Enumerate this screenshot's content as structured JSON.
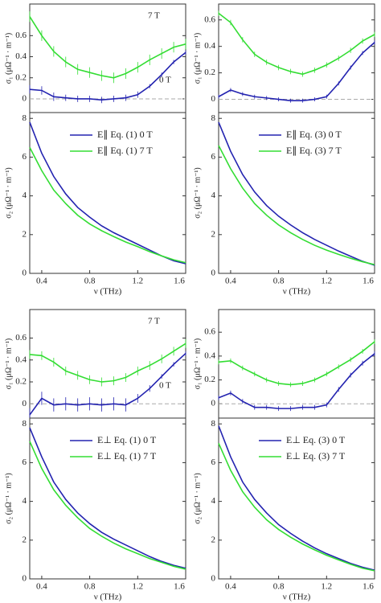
{
  "chart_data": [
    {
      "type": "line",
      "ylabel": "σ₁ (μΩ⁻¹ · m⁻¹)",
      "xlim": [
        0.3,
        1.6
      ],
      "ylim": [
        -0.13,
        0.9
      ],
      "yticks": [
        0,
        0.2,
        0.4,
        0.6
      ],
      "hline": 0,
      "annotations": [
        "7 T",
        "0 T"
      ],
      "x": [
        0.3,
        0.4,
        0.5,
        0.6,
        0.7,
        0.8,
        0.9,
        1.0,
        1.1,
        1.2,
        1.3,
        1.4,
        1.5,
        1.6
      ],
      "series": [
        {
          "color": "#33dd33",
          "values": [
            0.78,
            0.6,
            0.45,
            0.35,
            0.28,
            0.25,
            0.22,
            0.2,
            0.24,
            0.3,
            0.37,
            0.43,
            0.49,
            0.52
          ],
          "errors": [
            0.05,
            0.05,
            0.05,
            0.05,
            0.05,
            0.05,
            0.05,
            0.05,
            0.05,
            0.05,
            0.05,
            0.05,
            0.05,
            0.05
          ]
        },
        {
          "color": "#2323b0",
          "values": [
            0.09,
            0.08,
            0.02,
            0.01,
            0.0,
            0.0,
            -0.01,
            0.0,
            0.01,
            0.04,
            0.12,
            0.23,
            0.35,
            0.44
          ],
          "errors": [
            0.04,
            0.04,
            0.04,
            0.03,
            0.03,
            0.03,
            0.03,
            0.03,
            0.03,
            0.03,
            0.02,
            0.02,
            0.02,
            0.02
          ]
        }
      ]
    },
    {
      "type": "line",
      "ylabel": "σ₁ (μΩ⁻¹ · m⁻¹)",
      "xlim": [
        0.3,
        1.6
      ],
      "ylim": [
        -0.1,
        0.72
      ],
      "yticks": [
        0,
        0.2,
        0.4,
        0.6
      ],
      "hline": 0,
      "x": [
        0.3,
        0.4,
        0.5,
        0.6,
        0.7,
        0.8,
        0.9,
        1.0,
        1.1,
        1.2,
        1.3,
        1.4,
        1.5,
        1.6
      ],
      "series": [
        {
          "color": "#33dd33",
          "values": [
            0.65,
            0.58,
            0.45,
            0.34,
            0.28,
            0.24,
            0.21,
            0.19,
            0.22,
            0.26,
            0.31,
            0.37,
            0.44,
            0.49
          ],
          "errors": [
            0.02,
            0.02,
            0.02,
            0.02,
            0.02,
            0.02,
            0.02,
            0.02,
            0.02,
            0.02,
            0.02,
            0.02,
            0.02,
            0.02
          ]
        },
        {
          "color": "#2323b0",
          "values": [
            0.02,
            0.07,
            0.04,
            0.02,
            0.01,
            0.0,
            -0.01,
            -0.01,
            0.0,
            0.02,
            0.12,
            0.24,
            0.35,
            0.43
          ],
          "errors": [
            0.015,
            0.015,
            0.015,
            0.015,
            0.015,
            0.015,
            0.015,
            0.015,
            0.015,
            0.015,
            0.015,
            0.015,
            0.015,
            0.015
          ]
        }
      ]
    },
    {
      "type": "line",
      "ylabel": "σ₂ (μΩ⁻¹ · m⁻¹)",
      "xlabel": "ν (THz)",
      "xlim": [
        0.3,
        1.6
      ],
      "xticks": [
        0.4,
        0.8,
        1.2,
        1.6
      ],
      "ylim": [
        0,
        8.3
      ],
      "yticks": [
        0,
        2,
        4,
        6,
        8
      ],
      "x": [
        0.3,
        0.4,
        0.5,
        0.6,
        0.7,
        0.8,
        0.9,
        1.0,
        1.1,
        1.2,
        1.3,
        1.4,
        1.5,
        1.6
      ],
      "series": [
        {
          "name": "E∥  Eq. (1)  0 T",
          "color": "#2323b0",
          "values": [
            7.8,
            6.2,
            5.0,
            4.1,
            3.4,
            2.9,
            2.45,
            2.1,
            1.8,
            1.5,
            1.2,
            0.9,
            0.65,
            0.5
          ]
        },
        {
          "name": "E∥  Eq. (1)  7 T",
          "color": "#33dd33",
          "values": [
            6.5,
            5.3,
            4.3,
            3.6,
            3.0,
            2.55,
            2.2,
            1.9,
            1.62,
            1.38,
            1.12,
            0.9,
            0.7,
            0.55
          ]
        }
      ]
    },
    {
      "type": "line",
      "ylabel": "σ₂ (μΩ⁻¹ · m⁻¹)",
      "xlabel": "ν (THz)",
      "xlim": [
        0.3,
        1.6
      ],
      "xticks": [
        0.4,
        0.8,
        1.2,
        1.6
      ],
      "ylim": [
        0,
        8.3
      ],
      "yticks": [
        0,
        2,
        4,
        6,
        8
      ],
      "x": [
        0.3,
        0.4,
        0.5,
        0.6,
        0.7,
        0.8,
        0.9,
        1.0,
        1.1,
        1.2,
        1.3,
        1.4,
        1.5,
        1.6
      ],
      "series": [
        {
          "name": "E∥  Eq. (3)  0 T",
          "color": "#2323b0",
          "values": [
            7.8,
            6.3,
            5.1,
            4.2,
            3.5,
            2.95,
            2.5,
            2.1,
            1.75,
            1.45,
            1.15,
            0.88,
            0.62,
            0.42
          ]
        },
        {
          "name": "E∥  Eq. (3)  7 T",
          "color": "#33dd33",
          "values": [
            6.6,
            5.4,
            4.4,
            3.6,
            3.0,
            2.5,
            2.1,
            1.75,
            1.45,
            1.2,
            0.98,
            0.78,
            0.6,
            0.45
          ]
        }
      ]
    },
    {
      "type": "line",
      "ylabel": "σ₁ (μΩ⁻¹ · m⁻¹)",
      "xlim": [
        0.3,
        1.6
      ],
      "ylim": [
        -0.13,
        0.86
      ],
      "yticks": [
        0,
        0.2,
        0.4,
        0.6
      ],
      "hline": 0,
      "annotations": [
        "7 T",
        "0 T"
      ],
      "x": [
        0.3,
        0.4,
        0.5,
        0.6,
        0.7,
        0.8,
        0.9,
        1.0,
        1.1,
        1.2,
        1.3,
        1.4,
        1.5,
        1.6
      ],
      "series": [
        {
          "color": "#33dd33",
          "values": [
            0.45,
            0.44,
            0.38,
            0.3,
            0.26,
            0.22,
            0.2,
            0.21,
            0.24,
            0.3,
            0.35,
            0.41,
            0.48,
            0.55
          ],
          "errors": [
            0.04,
            0.04,
            0.04,
            0.04,
            0.04,
            0.04,
            0.04,
            0.04,
            0.04,
            0.04,
            0.04,
            0.04,
            0.04,
            0.04
          ]
        },
        {
          "color": "#2323b0",
          "values": [
            -0.1,
            0.05,
            -0.01,
            0.0,
            -0.01,
            0.0,
            -0.01,
            0.0,
            -0.01,
            0.05,
            0.14,
            0.25,
            0.36,
            0.46
          ],
          "errors": [
            0.06,
            0.06,
            0.06,
            0.06,
            0.06,
            0.06,
            0.06,
            0.06,
            0.06,
            0.04,
            0.03,
            0.02,
            0.02,
            0.02
          ]
        }
      ]
    },
    {
      "type": "line",
      "ylabel": "σ₁ (μΩ⁻¹ · m⁻¹)",
      "xlim": [
        0.3,
        1.6
      ],
      "ylim": [
        -0.12,
        0.79
      ],
      "yticks": [
        0,
        0.2,
        0.4,
        0.6
      ],
      "hline": 0,
      "x": [
        0.3,
        0.4,
        0.5,
        0.6,
        0.7,
        0.8,
        0.9,
        1.0,
        1.1,
        1.2,
        1.3,
        1.4,
        1.5,
        1.6
      ],
      "series": [
        {
          "color": "#33dd33",
          "values": [
            0.35,
            0.36,
            0.3,
            0.25,
            0.2,
            0.17,
            0.16,
            0.17,
            0.2,
            0.25,
            0.31,
            0.37,
            0.44,
            0.52
          ],
          "errors": [
            0.02,
            0.02,
            0.02,
            0.02,
            0.02,
            0.02,
            0.02,
            0.02,
            0.02,
            0.02,
            0.02,
            0.02,
            0.02,
            0.02
          ]
        },
        {
          "color": "#2323b0",
          "values": [
            0.05,
            0.09,
            0.02,
            -0.03,
            -0.03,
            -0.04,
            -0.04,
            -0.03,
            -0.03,
            -0.01,
            0.12,
            0.24,
            0.34,
            0.42
          ],
          "errors": [
            0.02,
            0.02,
            0.02,
            0.02,
            0.02,
            0.02,
            0.02,
            0.02,
            0.02,
            0.02,
            0.02,
            0.02,
            0.02,
            0.02
          ]
        }
      ]
    },
    {
      "type": "line",
      "ylabel": "σ₂ (μΩ⁻¹ · m⁻¹)",
      "xlabel": "ν (THz)",
      "xlim": [
        0.3,
        1.6
      ],
      "xticks": [
        0.4,
        0.8,
        1.2,
        1.6
      ],
      "ylim": [
        0,
        8.3
      ],
      "yticks": [
        0,
        2,
        4,
        6,
        8
      ],
      "x": [
        0.3,
        0.4,
        0.5,
        0.6,
        0.7,
        0.8,
        0.9,
        1.0,
        1.1,
        1.2,
        1.3,
        1.4,
        1.5,
        1.6
      ],
      "series": [
        {
          "name": "E⊥  Eq. (1) 0 T",
          "color": "#2323b0",
          "values": [
            7.8,
            6.3,
            5.0,
            4.1,
            3.4,
            2.85,
            2.4,
            2.05,
            1.75,
            1.45,
            1.15,
            0.9,
            0.7,
            0.55
          ]
        },
        {
          "name": "E⊥  Eq. (1) 7 T",
          "color": "#33dd33",
          "values": [
            7.1,
            5.7,
            4.6,
            3.8,
            3.15,
            2.6,
            2.2,
            1.85,
            1.55,
            1.3,
            1.05,
            0.85,
            0.65,
            0.5
          ]
        }
      ]
    },
    {
      "type": "line",
      "ylabel": "σ₂ (μΩ⁻¹ · m⁻¹)",
      "xlabel": "ν (THz)",
      "xlim": [
        0.3,
        1.6
      ],
      "xticks": [
        0.4,
        0.8,
        1.2,
        1.6
      ],
      "ylim": [
        0,
        8.3
      ],
      "yticks": [
        0,
        2,
        4,
        6,
        8
      ],
      "x": [
        0.3,
        0.4,
        0.5,
        0.6,
        0.7,
        0.8,
        0.9,
        1.0,
        1.1,
        1.2,
        1.3,
        1.4,
        1.5,
        1.6
      ],
      "series": [
        {
          "name": "E⊥  Eq. (3) 0 T",
          "color": "#2323b0",
          "values": [
            7.9,
            6.3,
            5.0,
            4.1,
            3.4,
            2.8,
            2.35,
            1.95,
            1.6,
            1.3,
            1.05,
            0.8,
            0.6,
            0.45
          ]
        },
        {
          "name": "E⊥  Eq. (3) 7 T",
          "color": "#33dd33",
          "values": [
            7.0,
            5.6,
            4.5,
            3.7,
            3.05,
            2.55,
            2.15,
            1.8,
            1.5,
            1.22,
            0.98,
            0.75,
            0.55,
            0.42
          ]
        }
      ]
    }
  ]
}
